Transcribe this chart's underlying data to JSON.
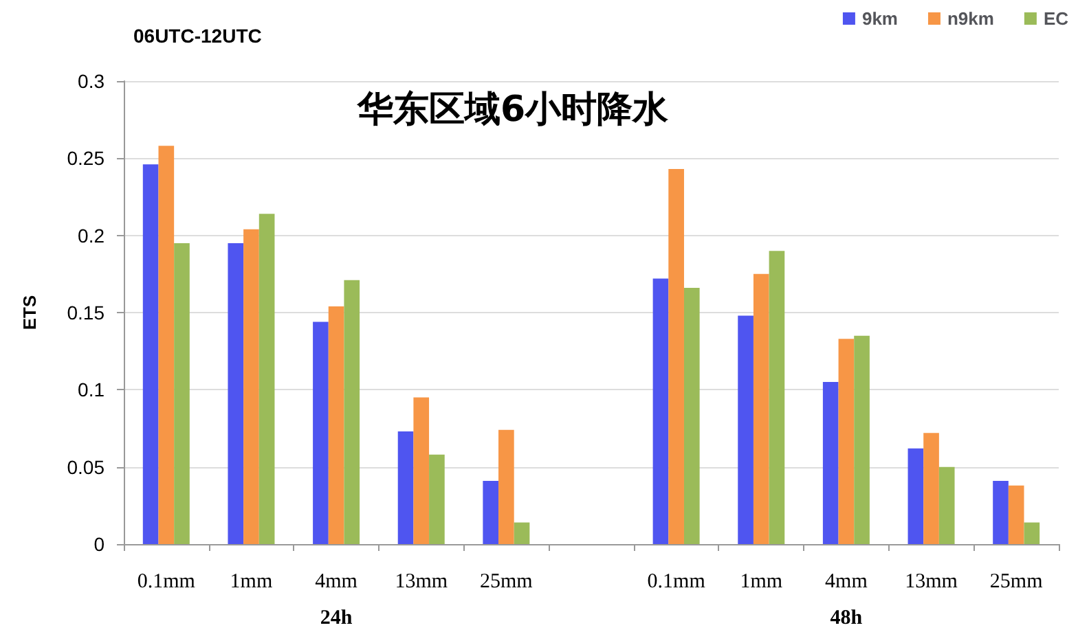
{
  "chart_data": {
    "type": "bar",
    "title": "华东区域6小时降水",
    "subtitle": "06UTC-12UTC",
    "ylabel": "ETS",
    "categories": [
      "0.1mm",
      "1mm",
      "4mm",
      "13mm",
      "25mm",
      null,
      "0.1mm",
      "1mm",
      "4mm",
      "13mm",
      "25mm"
    ],
    "series": [
      {
        "name": "9km",
        "color": "#4f55f0",
        "values": [
          0.246,
          0.195,
          0.144,
          0.073,
          0.041,
          null,
          0.172,
          0.148,
          0.105,
          0.062,
          0.041
        ]
      },
      {
        "name": "n9km",
        "color": "#f79646",
        "values": [
          0.258,
          0.204,
          0.154,
          0.095,
          0.074,
          null,
          0.243,
          0.175,
          0.133,
          0.072,
          0.038
        ]
      },
      {
        "name": "EC",
        "color": "#9bbb59",
        "values": [
          0.195,
          0.214,
          0.171,
          0.058,
          0.014,
          null,
          0.166,
          0.19,
          0.135,
          0.05,
          0.014
        ]
      }
    ],
    "annotations": [
      "24h",
      "48h"
    ],
    "ylim": [
      0,
      0.3
    ],
    "yticks": [
      0,
      0.05,
      0.1,
      0.15,
      0.2,
      0.25,
      0.3
    ],
    "grid": "y",
    "legend": "top right"
  }
}
